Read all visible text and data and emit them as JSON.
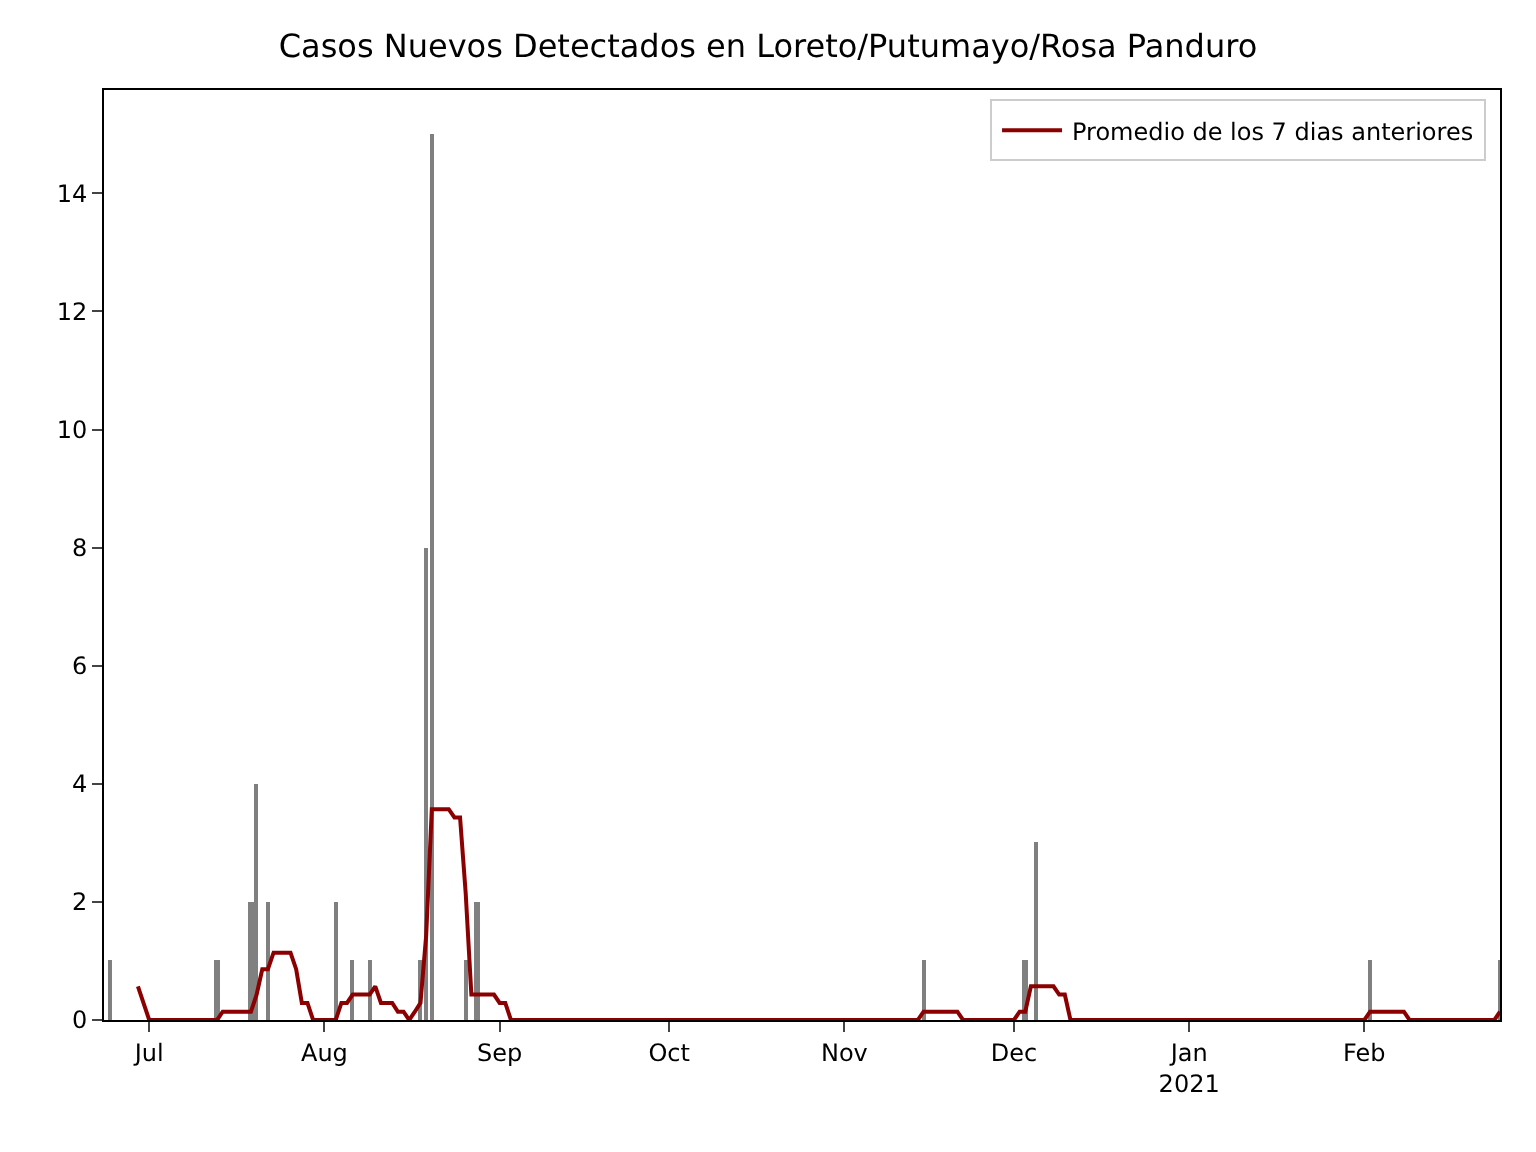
{
  "chart_data": {
    "type": "bar",
    "title": "Casos Nuevos Detectados en Loreto/Putumayo/Rosa Panduro",
    "xlim": [
      "2020-06-23",
      "2021-02-25"
    ],
    "xticks": [
      {
        "value": "2020-07-01",
        "label": "Jul"
      },
      {
        "value": "2020-08-01",
        "label": "Aug"
      },
      {
        "value": "2020-09-01",
        "label": "Sep"
      },
      {
        "value": "2020-10-01",
        "label": "Oct"
      },
      {
        "value": "2020-11-01",
        "label": "Nov"
      },
      {
        "value": "2020-12-01",
        "label": "Dec"
      },
      {
        "value": "2021-01-01",
        "label": "Jan\n2021"
      },
      {
        "value": "2021-02-01",
        "label": "Feb"
      }
    ],
    "ylim": [
      0,
      15.75
    ],
    "yticks": [
      0,
      2,
      4,
      6,
      8,
      10,
      12,
      14
    ],
    "legend": "top right",
    "series": [
      {
        "color": "#808080",
        "x": [
          "2020-06-24",
          "2020-07-13",
          "2020-07-19",
          "2020-07-20",
          "2020-07-22",
          "2020-08-03",
          "2020-08-06",
          "2020-08-09",
          "2020-08-18",
          "2020-08-19",
          "2020-08-20",
          "2020-08-26",
          "2020-08-28",
          "2020-11-15",
          "2020-12-03",
          "2020-12-05",
          "2021-02-02",
          "2021-02-25"
        ],
        "values": [
          1,
          1,
          2,
          4,
          2,
          2,
          1,
          1,
          1,
          8,
          15,
          1,
          2,
          1,
          1,
          3,
          1,
          1
        ]
      },
      {
        "type": "line",
        "name": "Promedio de los 7 dias anteriores",
        "color": "#8b0000",
        "x": [
          "2020-06-29",
          "2020-07-01",
          "2020-07-13",
          "2020-07-14",
          "2020-07-19",
          "2020-07-20",
          "2020-07-21",
          "2020-07-22",
          "2020-07-23",
          "2020-07-26",
          "2020-07-27",
          "2020-07-28",
          "2020-07-29",
          "2020-07-30",
          "2020-08-03",
          "2020-08-04",
          "2020-08-05",
          "2020-08-06",
          "2020-08-09",
          "2020-08-10",
          "2020-08-11",
          "2020-08-13",
          "2020-08-14",
          "2020-08-15",
          "2020-08-16",
          "2020-08-17",
          "2020-08-18",
          "2020-08-19",
          "2020-08-20",
          "2020-08-23",
          "2020-08-24",
          "2020-08-25",
          "2020-08-26",
          "2020-08-27",
          "2020-08-31",
          "2020-09-01",
          "2020-09-02",
          "2020-09-03",
          "2020-11-14",
          "2020-11-15",
          "2020-11-21",
          "2020-11-22",
          "2020-12-01",
          "2020-12-02",
          "2020-12-03",
          "2020-12-04",
          "2020-12-08",
          "2020-12-09",
          "2020-12-10",
          "2020-12-11",
          "2021-02-01",
          "2021-02-02",
          "2021-02-08",
          "2021-02-09",
          "2021-02-24",
          "2021-02-25"
        ],
        "values": [
          0.57,
          0,
          0,
          0.14,
          0.14,
          0.43,
          0.86,
          0.86,
          1.14,
          1.14,
          0.86,
          0.29,
          0.29,
          0,
          0,
          0.29,
          0.29,
          0.43,
          0.43,
          0.57,
          0.29,
          0.29,
          0.14,
          0.14,
          0,
          0.14,
          0.29,
          1.43,
          3.57,
          3.57,
          3.43,
          3.43,
          2.14,
          0.43,
          0.43,
          0.29,
          0.29,
          0,
          0,
          0.14,
          0.14,
          0,
          0,
          0.14,
          0.14,
          0.57,
          0.57,
          0.43,
          0.43,
          0,
          0,
          0.14,
          0.14,
          0,
          0,
          0.14
        ]
      }
    ]
  }
}
